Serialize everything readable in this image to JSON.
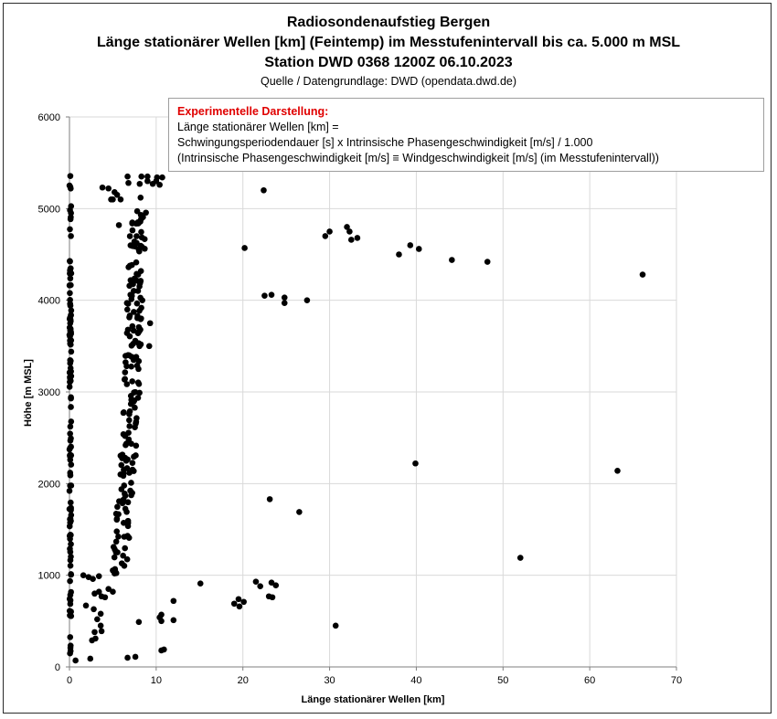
{
  "titles": {
    "line1": "Radiosondenaufstieg Bergen",
    "line2": "Länge stationärer Wellen [km] (Feintemp) im Messtufenintervall bis ca. 5.000 m MSL",
    "line3": "Station DWD 0368 1200Z 06.10.2023",
    "source": "Quelle / Datengrundlage: DWD (opendata.dwd.de)"
  },
  "infobox": {
    "heading": "Experimentelle Darstellung:",
    "line1": "Länge stationärer Wellen [km] =",
    "line2": "Schwingungsperiodendauer [s] x Intrinsische Phasengeschwindigkeit [m/s]  / 1.000",
    "line3": "(Intrinsische Phasengeschwindigkeit [m/s] ≡ Windgeschwindigkeit [m/s] (im Messtufenintervall))"
  },
  "colors": {
    "marker": "#000000",
    "grid": "#d9d9d9",
    "axis": "#7f7f7f"
  },
  "chart_data": {
    "type": "scatter",
    "title": "Radiosondenaufstieg Bergen",
    "xlabel": "Länge stationärer Wellen [km]",
    "ylabel": "Höhe [m MSL]",
    "xlim": [
      0,
      70
    ],
    "ylim": [
      0,
      6000
    ],
    "xticks": [
      0,
      10,
      20,
      30,
      40,
      50,
      60,
      70
    ],
    "yticks": [
      0,
      1000,
      2000,
      3000,
      4000,
      5000,
      6000
    ],
    "grid": true,
    "legend": "none",
    "points": [
      [
        22.4,
        5200
      ],
      [
        20.2,
        4570
      ],
      [
        29.5,
        4700
      ],
      [
        30.0,
        4750
      ],
      [
        32.0,
        4800
      ],
      [
        32.3,
        4750
      ],
      [
        32.5,
        4660
      ],
      [
        33.2,
        4680
      ],
      [
        38.0,
        4500
      ],
      [
        39.3,
        4600
      ],
      [
        40.3,
        4560
      ],
      [
        44.1,
        4440
      ],
      [
        48.2,
        4420
      ],
      [
        66.1,
        4280
      ],
      [
        22.5,
        4050
      ],
      [
        23.3,
        4060
      ],
      [
        24.8,
        4030
      ],
      [
        24.8,
        3970
      ],
      [
        27.4,
        4000
      ],
      [
        39.9,
        2220
      ],
      [
        63.2,
        2140
      ],
      [
        23.1,
        1830
      ],
      [
        26.5,
        1690
      ],
      [
        52.0,
        1190
      ],
      [
        15.1,
        910
      ],
      [
        21.5,
        930
      ],
      [
        22.0,
        880
      ],
      [
        23.3,
        920
      ],
      [
        23.8,
        890
      ],
      [
        19.0,
        690
      ],
      [
        19.5,
        740
      ],
      [
        20.1,
        710
      ],
      [
        19.6,
        660
      ],
      [
        23.0,
        770
      ],
      [
        23.4,
        760
      ],
      [
        30.7,
        450
      ],
      [
        12.0,
        720
      ],
      [
        12.0,
        510
      ],
      [
        10.4,
        540
      ],
      [
        10.6,
        500
      ],
      [
        10.6,
        570
      ],
      [
        8.0,
        490
      ],
      [
        10.6,
        180
      ],
      [
        10.9,
        190
      ],
      [
        6.7,
        100
      ],
      [
        7.6,
        110
      ],
      [
        2.4,
        90
      ],
      [
        0.7,
        70
      ],
      [
        1.6,
        1000
      ],
      [
        2.2,
        980
      ],
      [
        2.7,
        960
      ],
      [
        3.4,
        990
      ],
      [
        1.9,
        670
      ],
      [
        2.8,
        630
      ],
      [
        2.9,
        800
      ],
      [
        3.4,
        820
      ],
      [
        3.7,
        770
      ],
      [
        4.1,
        760
      ],
      [
        4.5,
        850
      ],
      [
        5.0,
        820
      ],
      [
        3.6,
        580
      ],
      [
        3.2,
        520
      ],
      [
        2.6,
        290
      ],
      [
        3.0,
        310
      ],
      [
        2.9,
        380
      ],
      [
        3.6,
        450
      ],
      [
        3.7,
        390
      ],
      [
        4.5,
        5220
      ],
      [
        3.8,
        5230
      ],
      [
        5.2,
        5180
      ],
      [
        4.8,
        5100
      ],
      [
        5.5,
        5150
      ],
      [
        5.9,
        5100
      ],
      [
        5.7,
        4820
      ],
      [
        6.8,
        5280
      ],
      [
        8.1,
        5270
      ],
      [
        6.7,
        5350
      ],
      [
        8.3,
        5350
      ],
      [
        9.0,
        5300
      ],
      [
        9.0,
        5350
      ],
      [
        9.6,
        5270
      ],
      [
        10.1,
        5340
      ],
      [
        10.4,
        5260
      ],
      [
        10.7,
        5340
      ],
      [
        10.0,
        5300
      ],
      [
        8.2,
        5120
      ],
      [
        9.3,
        3750
      ],
      [
        9.2,
        3500
      ],
      [
        5.2,
        1020
      ],
      [
        6.7,
        1430
      ],
      [
        5.0,
        5100
      ],
      [
        8.4,
        4000
      ]
    ],
    "clusters": [
      {
        "note": "dense near-vertical band of points",
        "xmin": 0.0,
        "xmax": 0.2,
        "ymin": 100,
        "ymax": 5380,
        "count": 120
      },
      {
        "note": "dense band of points",
        "ymin": 1000,
        "ymax": 5000,
        "count": 190,
        "xcenter_at_y": [
          [
            1000,
            5.6
          ],
          [
            2000,
            6.6
          ],
          [
            3000,
            7.2
          ],
          [
            4000,
            7.5
          ],
          [
            5000,
            8.0
          ]
        ],
        "spread": 0.9
      }
    ]
  }
}
